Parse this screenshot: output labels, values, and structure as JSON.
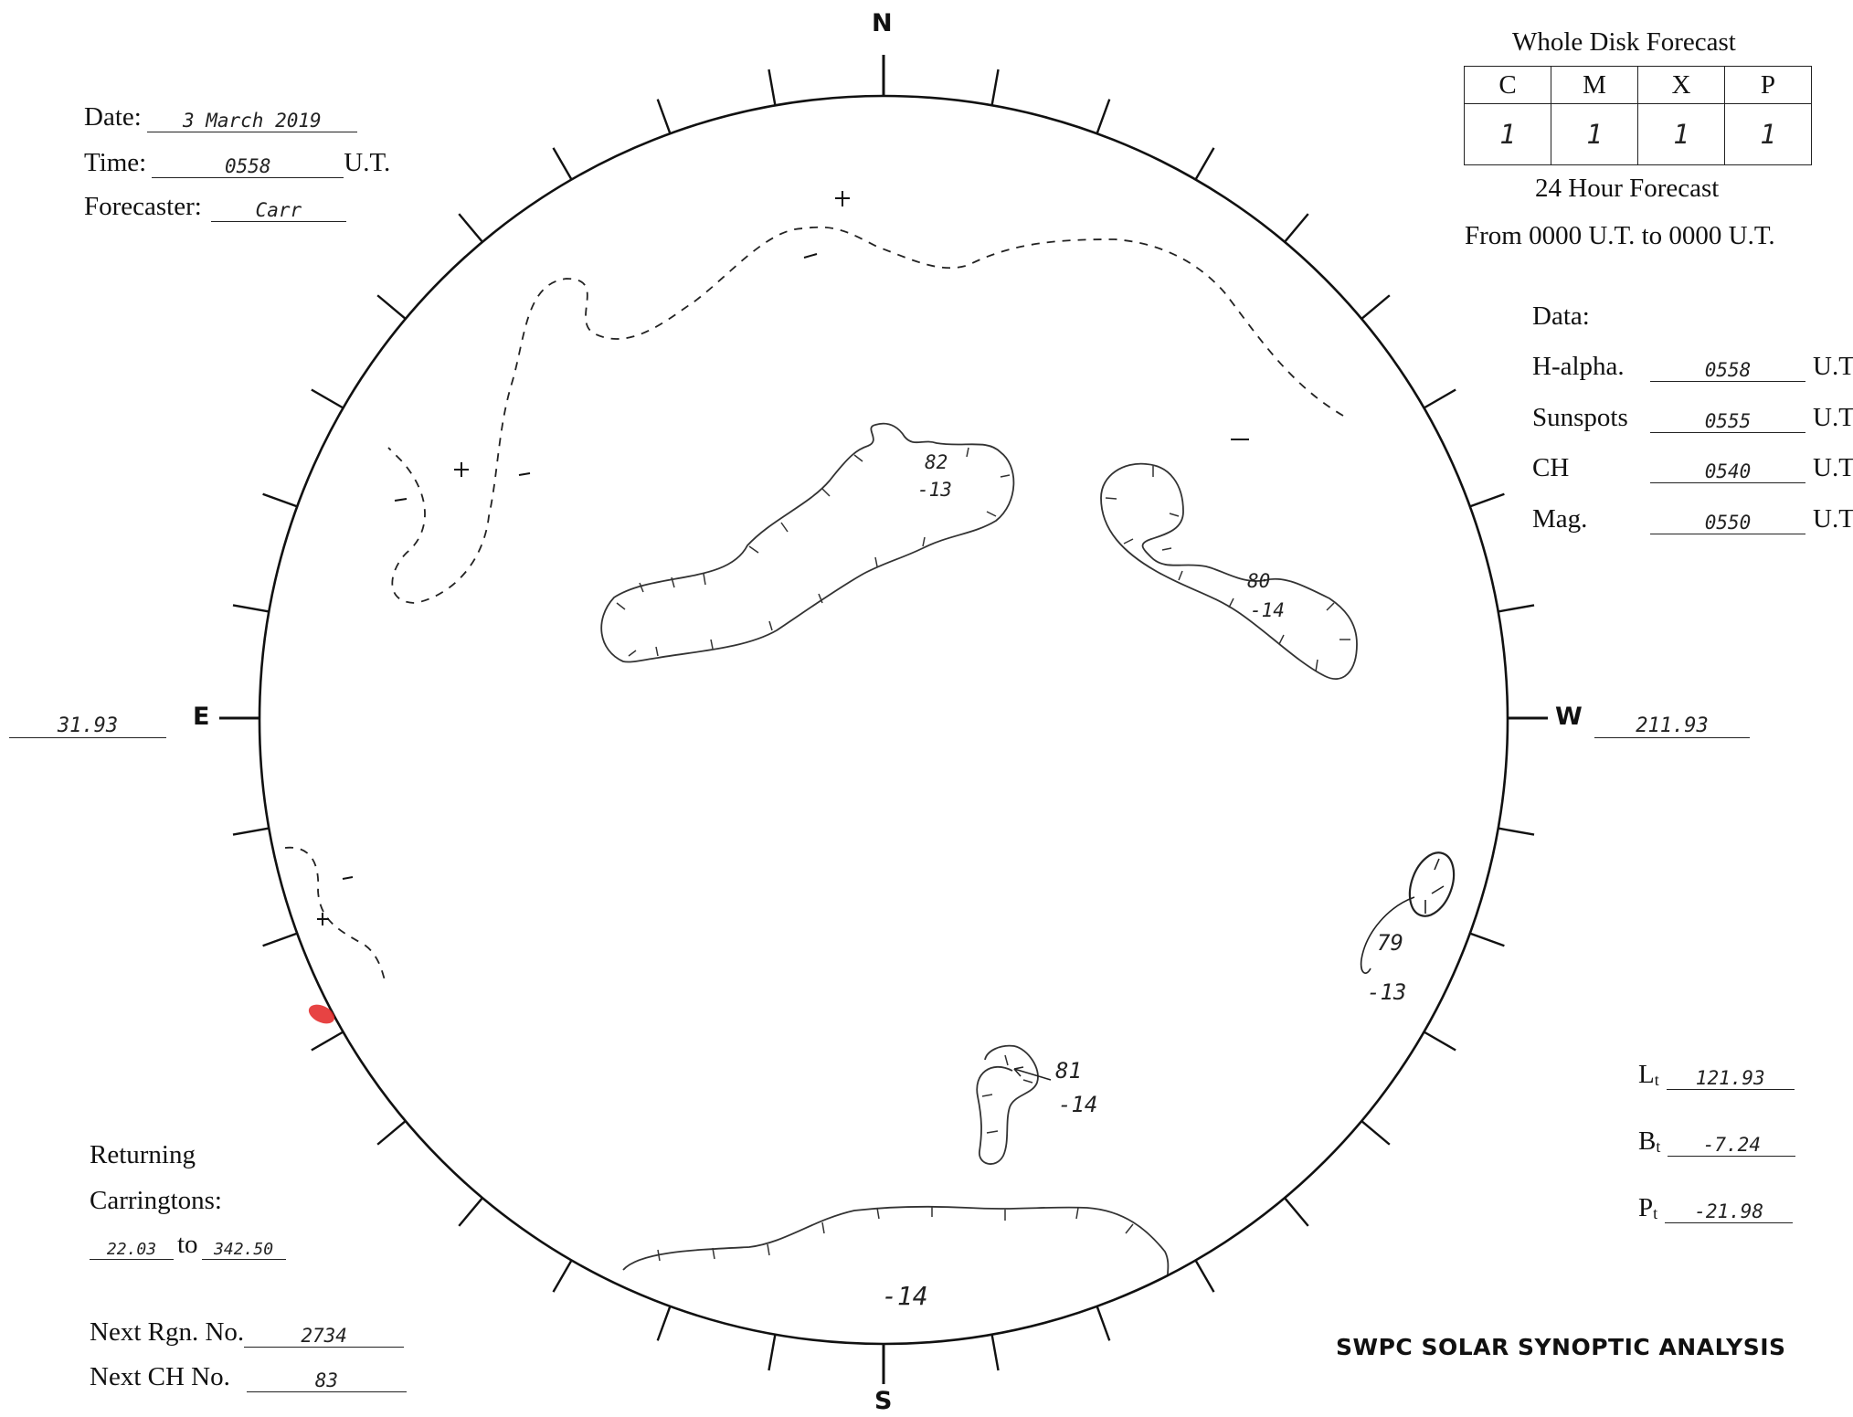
{
  "header": {
    "date_label": "Date:",
    "date_value": "3 March 2019",
    "time_label": "Time:",
    "time_value": "0558",
    "time_unit": "U.T.",
    "forecaster_label": "Forecaster:",
    "forecaster_value": "Carr"
  },
  "forecast": {
    "title": "Whole Disk Forecast",
    "columns": [
      "C",
      "M",
      "X",
      "P"
    ],
    "values": [
      "1",
      "1",
      "1",
      "1"
    ],
    "subtitle": "24 Hour Forecast",
    "range": "From 0000 U.T. to 0000 U.T."
  },
  "data_times": {
    "title": "Data:",
    "rows": [
      {
        "label": "H-alpha.",
        "value": "0558",
        "unit": "U.T."
      },
      {
        "label": "Sunspots",
        "value": "0555",
        "unit": "U.T."
      },
      {
        "label": "CH",
        "value": "0540",
        "unit": "U.T."
      },
      {
        "label": "Mag.",
        "value": "0550",
        "unit": "U.T."
      }
    ]
  },
  "compass": {
    "north": "N",
    "south": "S",
    "east": "E",
    "west": "W"
  },
  "longitudes": {
    "east": "31.93",
    "west": "211.93"
  },
  "disk_labels": {
    "ch82_a": "82",
    "ch82_b": "-13",
    "ch80_a": "80",
    "ch80_b": "-14",
    "ch79_a": "79",
    "ch79_b": "-13",
    "ch81_a": "81",
    "ch81_b": "-14",
    "south_pol": "-14"
  },
  "ephemeris": {
    "lt_label": "L",
    "lt_sub": "t",
    "lt_value": "121.93",
    "bt_label": "B",
    "bt_sub": "t",
    "bt_value": "-7.24",
    "pt_label": "P",
    "pt_sub": "t",
    "pt_value": "-21.98"
  },
  "returning": {
    "label1": "Returning",
    "label2": "Carringtons:",
    "from": "22.03",
    "to_word": "to",
    "to": "342.50"
  },
  "next": {
    "rgn_label": "Next Rgn. No.",
    "rgn_value": "2734",
    "ch_label": "Next CH No.",
    "ch_value": "83"
  },
  "footer": {
    "title": "SWPC SOLAR SYNOPTIC ANALYSIS"
  },
  "colors": {
    "ink": "#222222",
    "pencil": "#333333",
    "red_mark": "#e32222"
  }
}
